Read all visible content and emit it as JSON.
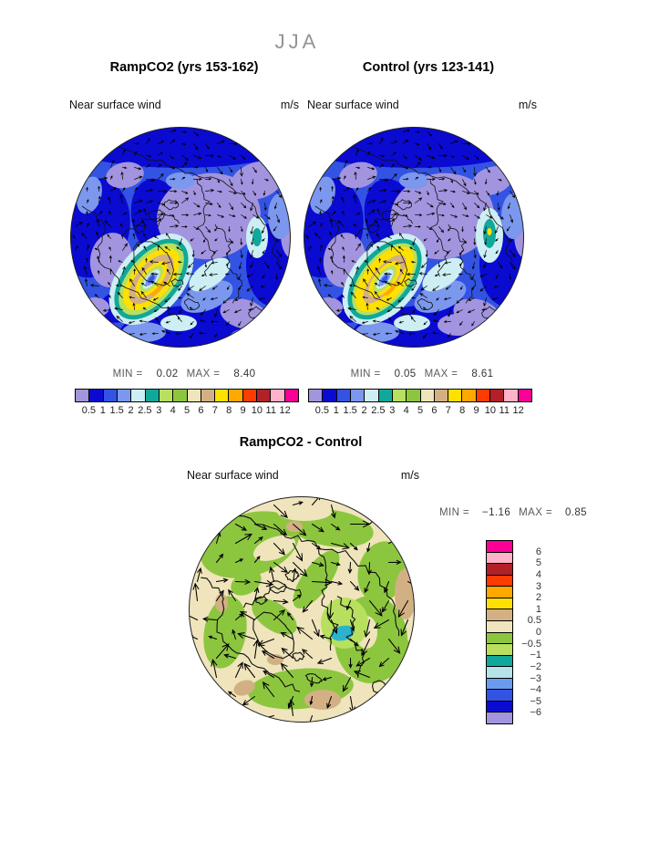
{
  "figure": {
    "season_title": "JJA"
  },
  "panels": {
    "ramp": {
      "title": "RampCO2 (yrs 153-162)",
      "field": "Near surface wind",
      "units": "m/s",
      "min_label": "MIN =",
      "min": "0.02",
      "max_label": "MAX =",
      "max": "8.40"
    },
    "control": {
      "title": "Control (yrs 123-141)",
      "field": "Near surface wind",
      "units": "m/s",
      "min_label": "MIN =",
      "min": "0.05",
      "max_label": "MAX =",
      "max": "8.61"
    },
    "diff": {
      "title": "RampCO2 - Control",
      "field": "Near surface wind",
      "units": "m/s",
      "min_label": "MIN =",
      "min": "−1.16",
      "max_label": "MAX =",
      "max": "0.85"
    }
  },
  "speed_colorbar": {
    "ticks": [
      "0.5",
      "1",
      "1.5",
      "2",
      "2.5",
      "3",
      "4",
      "5",
      "6",
      "7",
      "8",
      "9",
      "10",
      "11",
      "12"
    ],
    "colors": [
      "#a294de",
      "#0a0ad1",
      "#3353e3",
      "#7b97ee",
      "#cdeef3",
      "#10a89a",
      "#b8e05e",
      "#8cc63f",
      "#efe4bb",
      "#d3b083",
      "#ffe000",
      "#ffa800",
      "#ff3c00",
      "#b22028",
      "#ffb2c8",
      "#fa0096"
    ]
  },
  "diff_colorbar": {
    "ticks": [
      "6",
      "5",
      "4",
      "3",
      "2",
      "1",
      "0.5",
      "0",
      "−0.5",
      "−1",
      "−2",
      "−3",
      "−4",
      "−5",
      "−6"
    ],
    "colors": [
      "#fa0096",
      "#ffb2c8",
      "#b22028",
      "#ff3c00",
      "#ffa800",
      "#ffe000",
      "#d3b083",
      "#efe4bb",
      "#8cc63f",
      "#b8e05e",
      "#10a89a",
      "#b5e3e8",
      "#6b9bee",
      "#3353e3",
      "#0a0ad1",
      "#a294de"
    ]
  },
  "chart_data": [
    {
      "type": "heatmap",
      "title": "RampCO2 (yrs 153-162)",
      "season": "JJA",
      "variable": "Near surface wind",
      "units": "m/s",
      "projection": "north polar stereographic map with wind-vector overlay and coastlines",
      "min": 0.02,
      "max": 8.4,
      "color_scale_ticks": [
        0.5,
        1,
        1.5,
        2,
        2.5,
        3,
        4,
        5,
        6,
        7,
        8,
        9,
        10,
        11,
        12
      ],
      "legend_position": "below"
    },
    {
      "type": "heatmap",
      "title": "Control (yrs 123-141)",
      "season": "JJA",
      "variable": "Near surface wind",
      "units": "m/s",
      "projection": "north polar stereographic map with wind-vector overlay and coastlines",
      "min": 0.05,
      "max": 8.61,
      "color_scale_ticks": [
        0.5,
        1,
        1.5,
        2,
        2.5,
        3,
        4,
        5,
        6,
        7,
        8,
        9,
        10,
        11,
        12
      ],
      "legend_position": "below"
    },
    {
      "type": "heatmap",
      "title": "RampCO2 - Control",
      "season": "JJA",
      "variable": "Near surface wind difference",
      "units": "m/s",
      "projection": "north polar stereographic map with wind-vector overlay and coastlines",
      "min": -1.16,
      "max": 0.85,
      "color_scale_ticks": [
        6,
        5,
        4,
        3,
        2,
        1,
        0.5,
        0,
        -0.5,
        -1,
        -2,
        -3,
        -4,
        -5,
        -6
      ],
      "legend_position": "right"
    }
  ]
}
